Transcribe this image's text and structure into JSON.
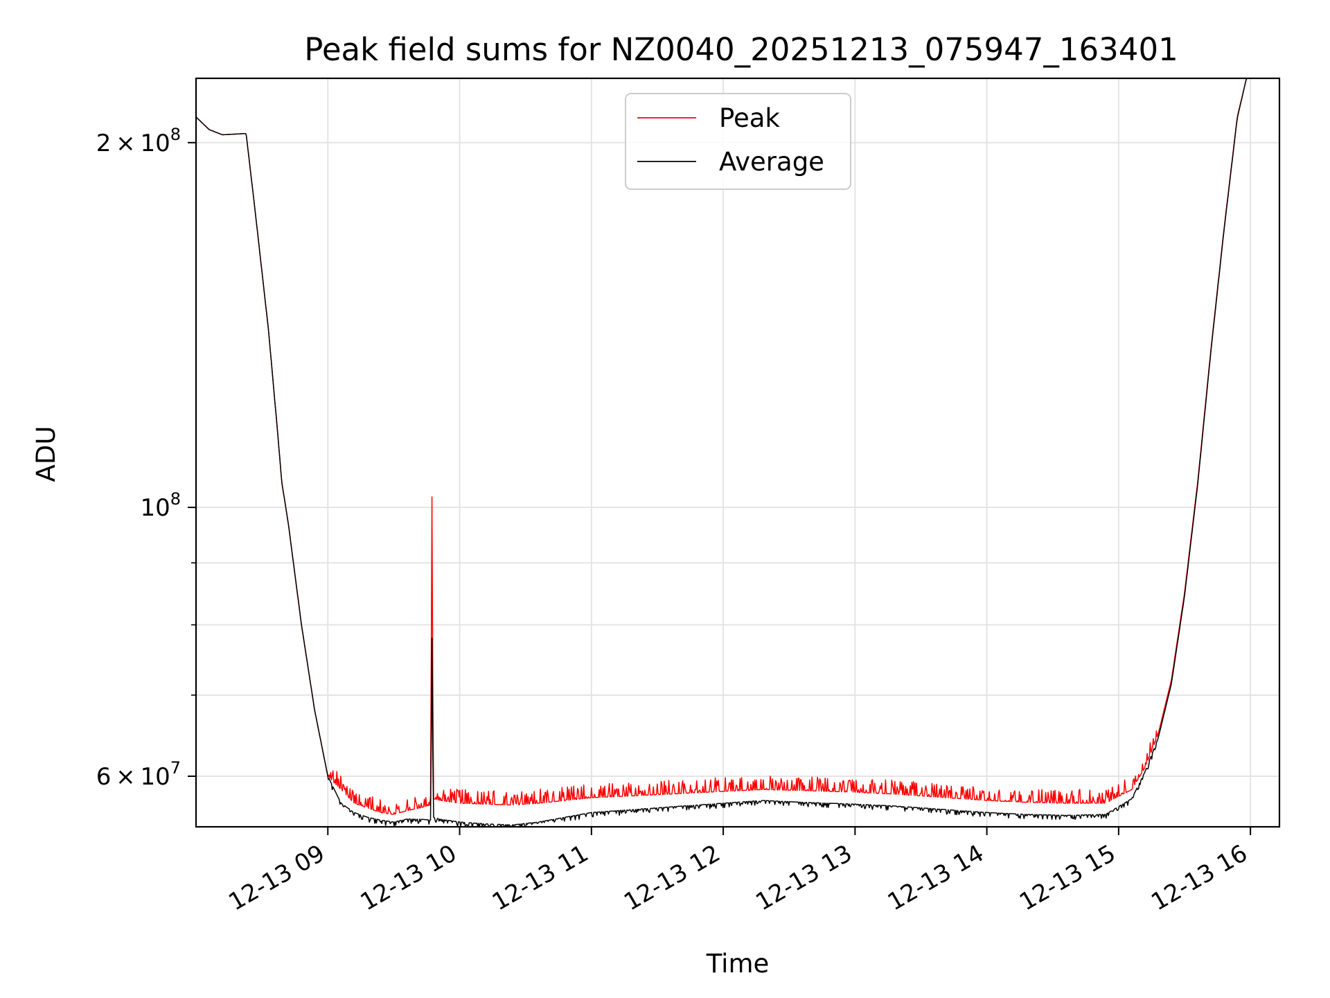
{
  "chart_data": {
    "type": "line",
    "title": "Peak field sums for NZ0040_20251213_075947_163401",
    "xlabel": "Time",
    "ylabel": "ADU",
    "yscale": "log",
    "grid": true,
    "legend_position": "top-center",
    "xlim_hours": [
      8.0,
      16.22
    ],
    "ylim": [
      54500000,
      226000000
    ],
    "x_ticks": [
      {
        "value": 9,
        "label": "12-13 09"
      },
      {
        "value": 10,
        "label": "12-13 10"
      },
      {
        "value": 11,
        "label": "12-13 11"
      },
      {
        "value": 12,
        "label": "12-13 12"
      },
      {
        "value": 13,
        "label": "12-13 13"
      },
      {
        "value": 14,
        "label": "12-13 14"
      },
      {
        "value": 15,
        "label": "12-13 15"
      },
      {
        "value": 16,
        "label": "12-13 16"
      }
    ],
    "y_major_ticks": [
      {
        "value": 60000000,
        "base": "6",
        "times": "×",
        "power_base": "10",
        "exponent": "7"
      },
      {
        "value": 100000000,
        "base": "",
        "times": "",
        "power_base": "10",
        "exponent": "8"
      },
      {
        "value": 200000000,
        "base": "2",
        "times": "×",
        "power_base": "10",
        "exponent": "8"
      }
    ],
    "y_minor_ticks": [
      70000000,
      80000000,
      90000000
    ],
    "series": [
      {
        "name": "Peak",
        "color": "#ff0000",
        "x": [
          8.0,
          8.1,
          8.2,
          8.38,
          8.45,
          8.55,
          8.62,
          8.65,
          8.7,
          8.8,
          8.9,
          9.0,
          9.1,
          9.2,
          9.3,
          9.4,
          9.5,
          9.6,
          9.7,
          9.78,
          9.79,
          9.8,
          9.85,
          9.9,
          10.0,
          10.2,
          10.4,
          10.6,
          10.8,
          11.0,
          11.3,
          11.6,
          12.0,
          12.3,
          12.6,
          13.0,
          13.3,
          13.6,
          14.0,
          14.3,
          14.6,
          14.9,
          15.1,
          15.2,
          15.3,
          15.4,
          15.5,
          15.6,
          15.7,
          15.8,
          15.9,
          15.97,
          16.22
        ],
        "y": [
          210000000,
          205000000,
          203000000,
          203500000,
          175000000,
          140000000,
          115000000,
          105000000,
          97000000,
          80000000,
          68000000,
          60000000,
          58500000,
          57000000,
          56500000,
          56000000,
          55800000,
          56200000,
          56500000,
          56800000,
          102000000,
          57500000,
          57300000,
          57200000,
          57000000,
          56900000,
          56800000,
          57000000,
          57300000,
          57600000,
          57800000,
          58000000,
          58300000,
          58500000,
          58400000,
          58200000,
          58000000,
          57700000,
          57300000,
          57100000,
          57000000,
          57000000,
          58500000,
          61000000,
          65000000,
          72000000,
          85000000,
          105000000,
          135000000,
          170000000,
          210000000,
          226000000,
          226000000
        ]
      },
      {
        "name": "Average",
        "color": "#000000",
        "x": [
          8.0,
          8.1,
          8.2,
          8.38,
          8.45,
          8.55,
          8.62,
          8.65,
          8.7,
          8.8,
          8.9,
          9.0,
          9.1,
          9.2,
          9.3,
          9.4,
          9.5,
          9.6,
          9.7,
          9.78,
          9.79,
          9.8,
          9.85,
          9.9,
          10.0,
          10.2,
          10.4,
          10.6,
          10.8,
          11.0,
          11.3,
          11.6,
          12.0,
          12.3,
          12.6,
          13.0,
          13.3,
          13.6,
          14.0,
          14.3,
          14.6,
          14.9,
          15.1,
          15.2,
          15.3,
          15.4,
          15.5,
          15.6,
          15.7,
          15.8,
          15.9,
          15.97,
          16.22
        ],
        "y": [
          210000000,
          205000000,
          203000000,
          203500000,
          175000000,
          140000000,
          115000000,
          105000000,
          97000000,
          80000000,
          68000000,
          60000000,
          57000000,
          56000000,
          55500000,
          55200000,
          55000000,
          55300000,
          55300000,
          55200000,
          78000000,
          55500000,
          55300000,
          55200000,
          55000000,
          54800000,
          54700000,
          55000000,
          55500000,
          56000000,
          56300000,
          56600000,
          57000000,
          57300000,
          57100000,
          56900000,
          56700000,
          56400000,
          56000000,
          55800000,
          55700000,
          55800000,
          57500000,
          60500000,
          64500000,
          71500000,
          84500000,
          104500000,
          134500000,
          169500000,
          209500000,
          226000000,
          226000000
        ]
      }
    ]
  }
}
